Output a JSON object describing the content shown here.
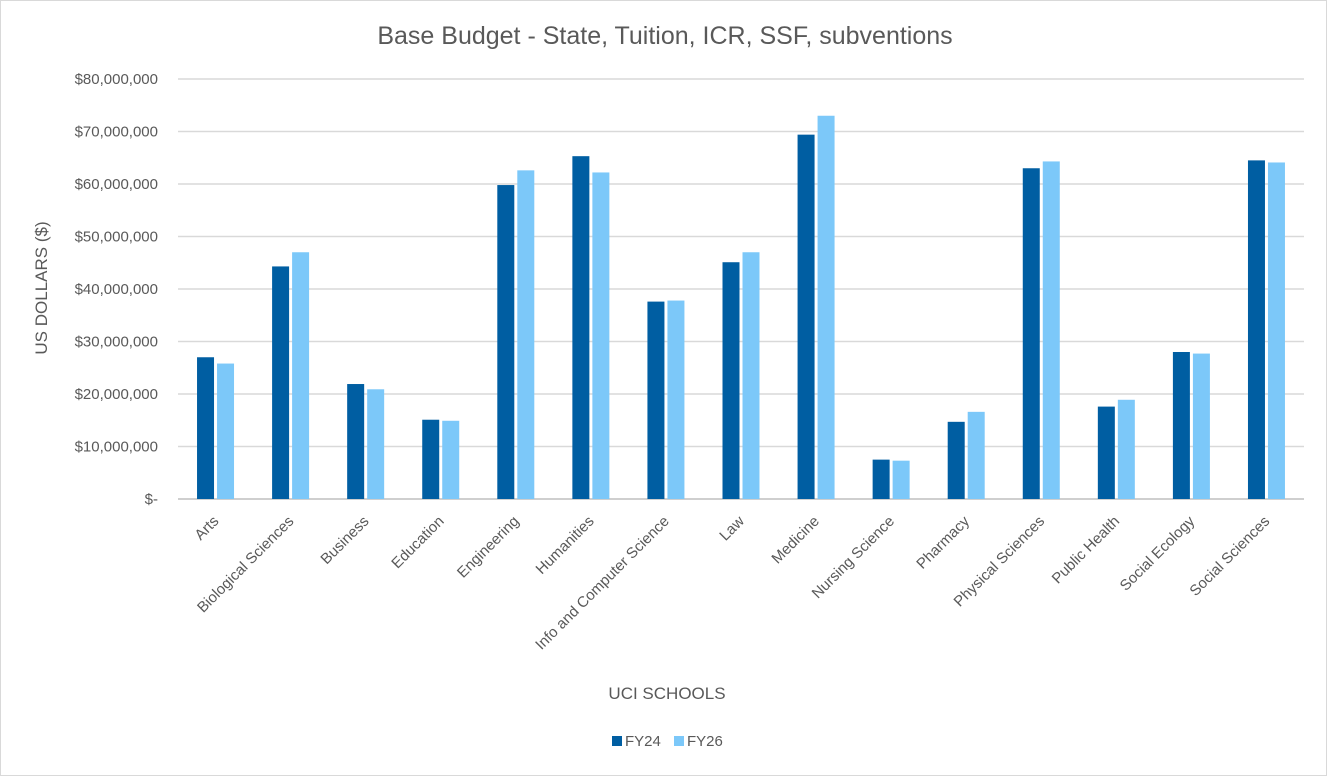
{
  "chart_data": {
    "type": "bar",
    "title": "Base Budget - State, Tuition, ICR, SSF, subventions",
    "xlabel": "UCI SCHOOLS",
    "ylabel": "US  DOLLARS ($)",
    "ylim": [
      0,
      80000000
    ],
    "yticks": [
      0,
      10000000,
      20000000,
      30000000,
      40000000,
      50000000,
      60000000,
      70000000,
      80000000
    ],
    "ytick_labels": [
      "$-",
      "$10,000,000",
      "$20,000,000",
      "$30,000,000",
      "$40,000,000",
      "$50,000,000",
      "$60,000,000",
      "$70,000,000",
      "$80,000,000"
    ],
    "grid": true,
    "legend_position": "bottom",
    "categories": [
      "Arts",
      "Biological Sciences",
      "Business",
      "Education",
      "Engineering",
      "Humanities",
      "Info and Computer Science",
      "Law",
      "Medicine",
      "Nursing Science",
      "Pharmacy",
      "Physical Sciences",
      "Public Health",
      "Social Ecology",
      "Social Sciences"
    ],
    "series": [
      {
        "name": "FY24",
        "color": "#005ea2",
        "values": [
          27000000,
          44300000,
          21900000,
          15100000,
          59800000,
          65300000,
          37600000,
          45100000,
          69400000,
          7500000,
          14700000,
          63000000,
          17600000,
          28000000,
          64500000
        ]
      },
      {
        "name": "FY26",
        "color": "#7cc8f9",
        "values": [
          25800000,
          47000000,
          20900000,
          14900000,
          62600000,
          62200000,
          37800000,
          47000000,
          73000000,
          7300000,
          16600000,
          64300000,
          18900000,
          27700000,
          64100000
        ]
      }
    ]
  }
}
